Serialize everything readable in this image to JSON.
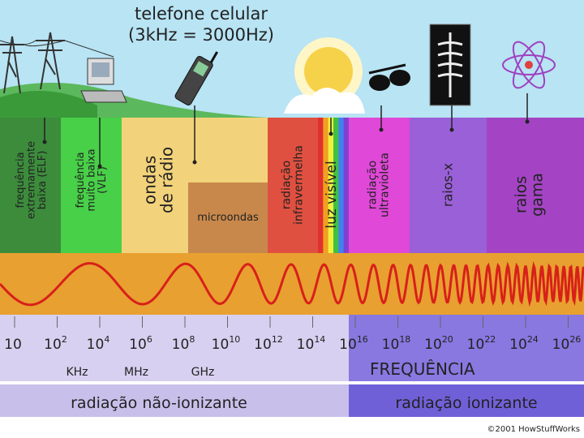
{
  "header": {
    "title": "telefone celular",
    "subtitle": "(3kHz = 3000Hz)"
  },
  "bands": [
    {
      "lines": [
        "frequência",
        "extremamente",
        "baixa (ELF)"
      ]
    },
    {
      "lines": [
        "frequência",
        "muito baixa",
        "(VLF)"
      ]
    },
    {
      "lines": [
        "ondas",
        "de rádio"
      ]
    },
    {
      "lines": [
        "microondas"
      ]
    },
    {
      "lines": [
        "radiação",
        "infravermelha"
      ]
    },
    {
      "lines": [
        "luz visível"
      ]
    },
    {
      "lines": [
        "radiação",
        "ultravioleta"
      ]
    },
    {
      "lines": [
        "raios-x"
      ]
    },
    {
      "lines": [
        "raios",
        "gama"
      ]
    }
  ],
  "frequency_ticks": [
    {
      "base": "10"
    },
    {
      "base": "10",
      "exponent": "2"
    },
    {
      "base": "10",
      "exponent": "4"
    },
    {
      "base": "10",
      "exponent": "6"
    },
    {
      "base": "10",
      "exponent": "8"
    },
    {
      "base": "10",
      "exponent": "10"
    },
    {
      "base": "10",
      "exponent": "12"
    },
    {
      "base": "10",
      "exponent": "14"
    },
    {
      "base": "10",
      "exponent": "16"
    },
    {
      "base": "10",
      "exponent": "18"
    },
    {
      "base": "10",
      "exponent": "20"
    },
    {
      "base": "10",
      "exponent": "22"
    },
    {
      "base": "10",
      "exponent": "24"
    },
    {
      "base": "10",
      "exponent": "26"
    }
  ],
  "units": [
    "KHz",
    "MHz",
    "GHz"
  ],
  "axis_label": "FREQUÊNCIA",
  "regions": [
    "radiação não-ionizante",
    "radiação ionizante"
  ],
  "credit": "©2001 HowStuffWorks"
}
